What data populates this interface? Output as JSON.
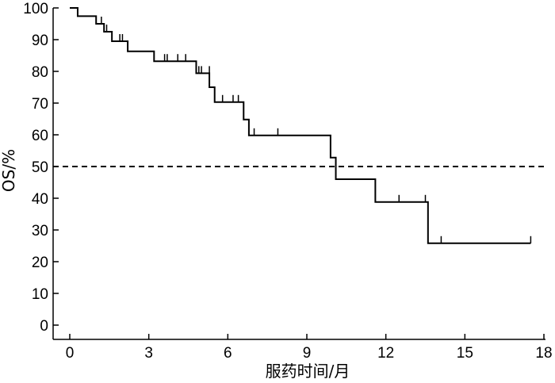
{
  "chart_data": {
    "type": "line",
    "subtype": "kaplan-meier-step",
    "xlabel": "服药时间/月",
    "ylabel": "OS/%",
    "xlim": [
      0,
      18
    ],
    "ylim": [
      0,
      100
    ],
    "xticks": [
      0,
      3,
      6,
      9,
      12,
      15,
      18
    ],
    "yticks": [
      0,
      10,
      20,
      30,
      40,
      50,
      60,
      70,
      80,
      90,
      100
    ],
    "grid": false,
    "legend": "none",
    "reference_line": {
      "y": 50,
      "style": "dashed"
    },
    "series": [
      {
        "steps": [
          [
            0,
            100
          ],
          [
            0.3,
            97.4
          ],
          [
            1.0,
            95.0
          ],
          [
            1.3,
            92.5
          ],
          [
            1.6,
            89.5
          ],
          [
            2.2,
            86.3
          ],
          [
            3.2,
            83.2
          ],
          [
            4.8,
            79.4
          ],
          [
            5.3,
            75.0
          ],
          [
            5.5,
            70.3
          ],
          [
            6.6,
            64.8
          ],
          [
            6.8,
            59.8
          ],
          [
            9.9,
            52.8
          ],
          [
            10.1,
            46.0
          ],
          [
            11.6,
            38.8
          ],
          [
            13.6,
            25.8
          ],
          [
            17.5,
            25.8
          ]
        ],
        "censored": [
          [
            1.2,
            95.0
          ],
          [
            1.4,
            92.5
          ],
          [
            1.9,
            89.5
          ],
          [
            2.0,
            89.5
          ],
          [
            3.6,
            83.2
          ],
          [
            3.7,
            83.2
          ],
          [
            4.1,
            83.2
          ],
          [
            4.4,
            83.2
          ],
          [
            4.9,
            79.4
          ],
          [
            5.0,
            79.4
          ],
          [
            5.3,
            79.4
          ],
          [
            5.8,
            70.3
          ],
          [
            6.2,
            70.3
          ],
          [
            6.4,
            70.3
          ],
          [
            7.0,
            59.8
          ],
          [
            7.9,
            59.8
          ],
          [
            12.5,
            38.8
          ],
          [
            13.5,
            38.8
          ],
          [
            14.1,
            25.8
          ],
          [
            17.5,
            25.8
          ]
        ]
      }
    ]
  }
}
